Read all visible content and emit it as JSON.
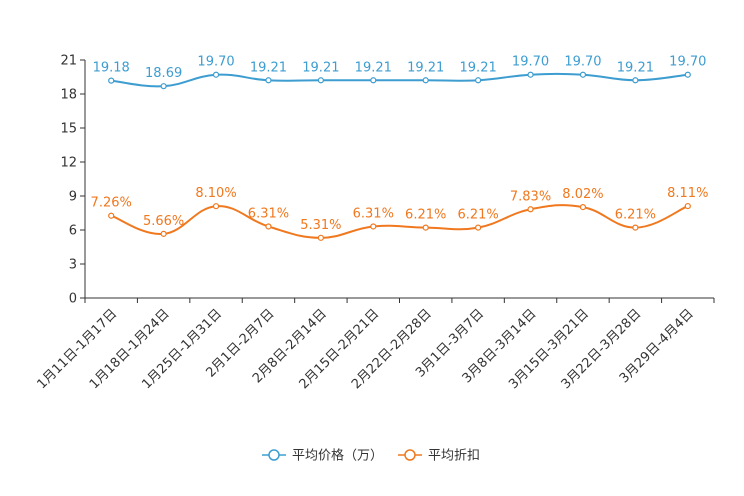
{
  "chart_data": {
    "type": "line",
    "title": "",
    "xlabel": "",
    "ylabel": "",
    "ylim": [
      0,
      21
    ],
    "yticks": [
      0,
      3,
      6,
      9,
      12,
      15,
      18,
      21
    ],
    "grid": false,
    "legend_position": "bottom-center",
    "categories": [
      "1月11日-1月17日",
      "1月18日-1月24日",
      "1月25日-1月31日",
      "2月1日-2月7日",
      "2月8日-2月14日",
      "2月15日-2月21日",
      "2月22日-2月28日",
      "3月1日-3月7日",
      "3月8日-3月14日",
      "3月15日-3月21日",
      "3月22日-3月28日",
      "3月29日-4月4日"
    ],
    "series": [
      {
        "name": "平均价格（万）",
        "color": "#3d9dd0",
        "values": [
          19.18,
          18.69,
          19.7,
          19.21,
          19.21,
          19.21,
          19.21,
          19.21,
          19.7,
          19.7,
          19.21,
          19.7
        ],
        "labels": [
          "19.18",
          "18.69",
          "19.70",
          "19.21",
          "19.21",
          "19.21",
          "19.21",
          "19.21",
          "19.70",
          "19.70",
          "19.21",
          "19.70"
        ]
      },
      {
        "name": "平均折扣",
        "color": "#f0781e",
        "values": [
          7.26,
          5.66,
          8.1,
          6.31,
          5.31,
          6.31,
          6.21,
          6.21,
          7.83,
          8.02,
          6.21,
          8.11
        ],
        "labels": [
          "7.26%",
          "5.66%",
          "8.10%",
          "6.31%",
          "5.31%",
          "6.31%",
          "6.21%",
          "6.21%",
          "7.83%",
          "8.02%",
          "6.21%",
          "8.11%"
        ]
      }
    ]
  }
}
